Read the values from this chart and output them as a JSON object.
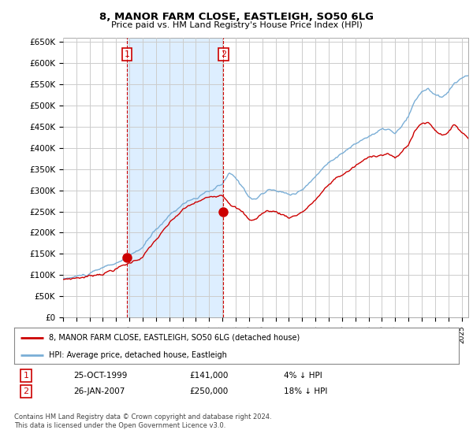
{
  "title": "8, MANOR FARM CLOSE, EASTLEIGH, SO50 6LG",
  "subtitle": "Price paid vs. HM Land Registry's House Price Index (HPI)",
  "background_color": "#ffffff",
  "plot_bg_color": "#ffffff",
  "grid_color": "#cccccc",
  "hpi_color": "#7aaed6",
  "price_color": "#cc0000",
  "shade_color": "#ddeeff",
  "ylim": [
    0,
    660000
  ],
  "yticks": [
    0,
    50000,
    100000,
    150000,
    200000,
    250000,
    300000,
    350000,
    400000,
    450000,
    500000,
    550000,
    600000,
    650000
  ],
  "ytick_labels": [
    "£0",
    "£50K",
    "£100K",
    "£150K",
    "£200K",
    "£250K",
    "£300K",
    "£350K",
    "£400K",
    "£450K",
    "£500K",
    "£550K",
    "£600K",
    "£650K"
  ],
  "purchase1_date": 1999.82,
  "purchase1_price": 141000,
  "purchase2_date": 2007.07,
  "purchase2_price": 250000,
  "legend_line1": "8, MANOR FARM CLOSE, EASTLEIGH, SO50 6LG (detached house)",
  "legend_line2": "HPI: Average price, detached house, Eastleigh",
  "table_row1": [
    "1",
    "25-OCT-1999",
    "£141,000",
    "4% ↓ HPI"
  ],
  "table_row2": [
    "2",
    "26-JAN-2007",
    "£250,000",
    "18% ↓ HPI"
  ],
  "footnote": "Contains HM Land Registry data © Crown copyright and database right 2024.\nThis data is licensed under the Open Government Licence v3.0.",
  "xmin": 1995.0,
  "xmax": 2025.5
}
